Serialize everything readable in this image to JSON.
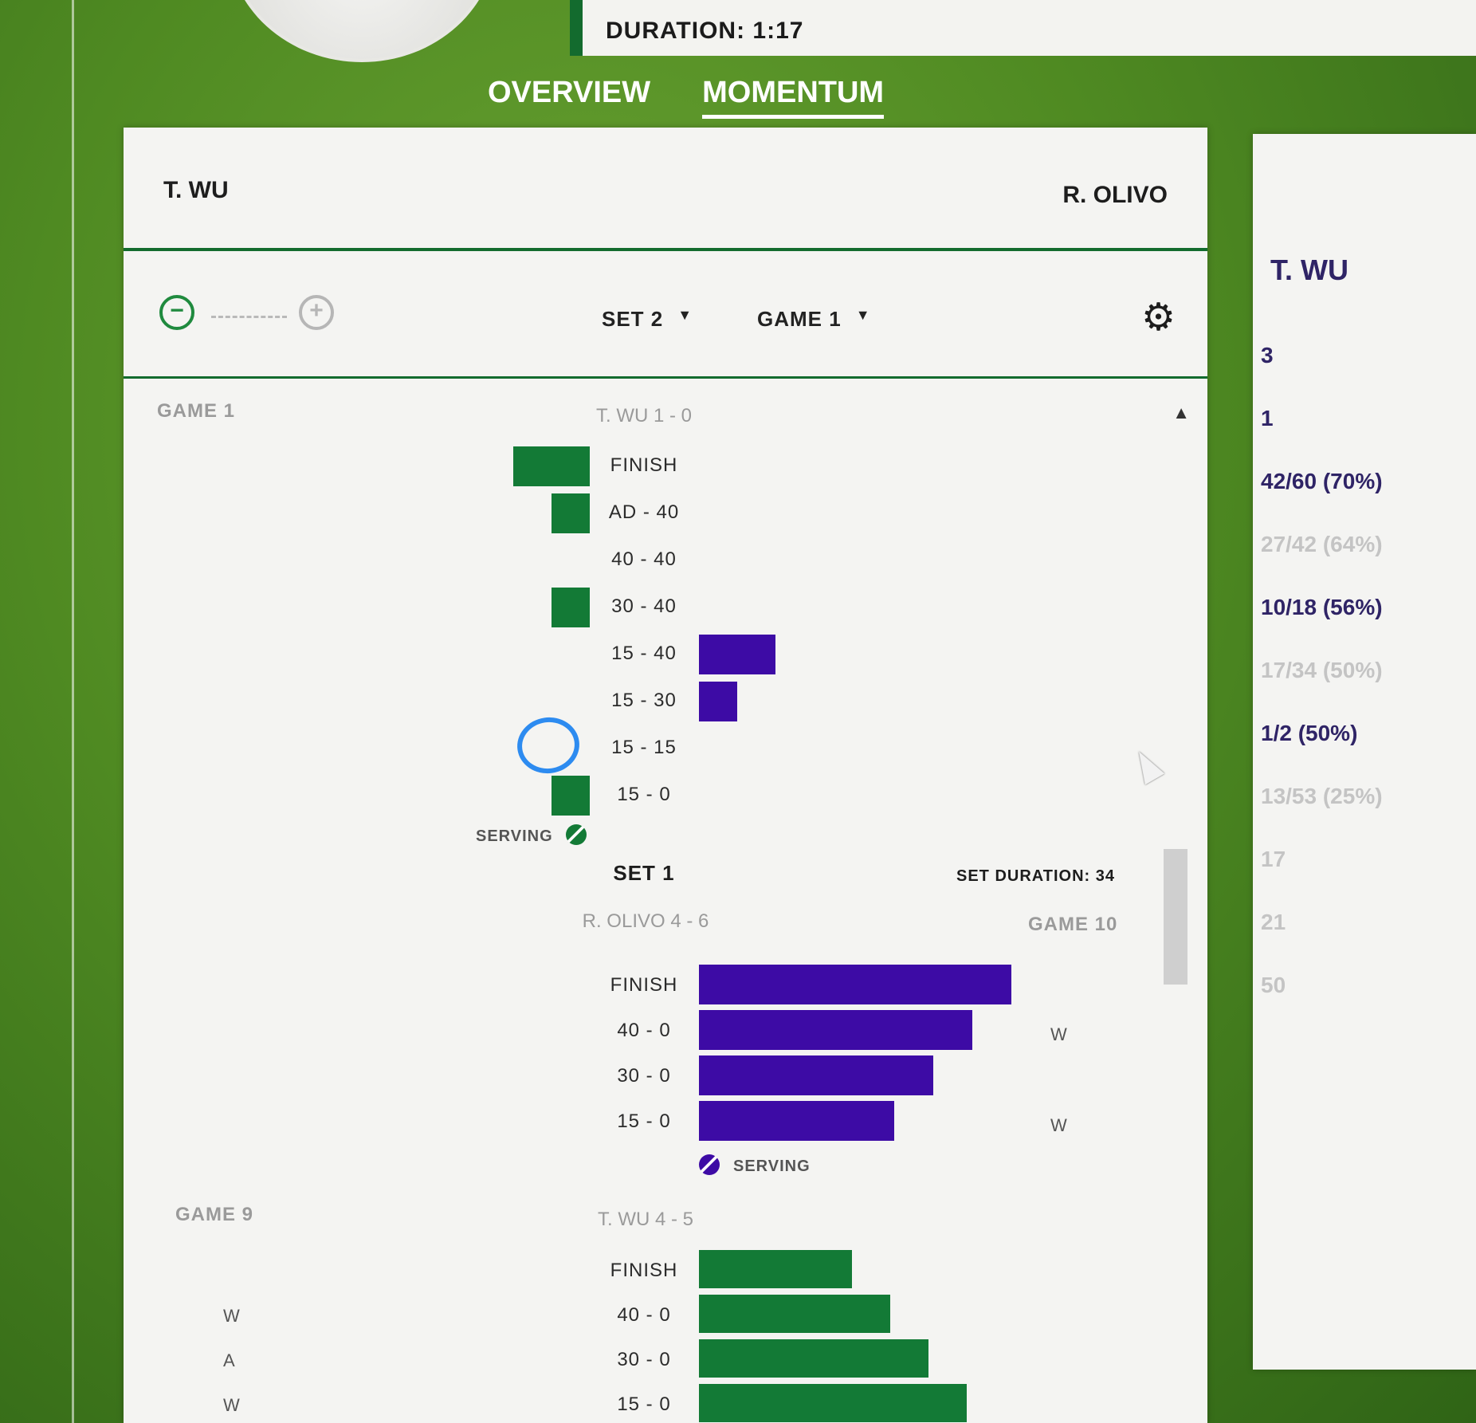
{
  "header": {
    "duration": "DURATION: 1:17"
  },
  "tabs": [
    {
      "label": "OVERVIEW",
      "active": false
    },
    {
      "label": "MOMENTUM",
      "active": true
    }
  ],
  "panel": {
    "player_left": "T. WU",
    "player_right": "R. OLIVO",
    "toolbar": {
      "zoom_out": "−",
      "zoom_in": "+",
      "set_select": "SET 2",
      "game_select": "GAME 1",
      "caret": "▼"
    },
    "scroll_up": "▲"
  },
  "colors": {
    "wu_green": "#137a36",
    "olivo_purple": "#3d0ba5",
    "accent_green": "#136b2e",
    "annotation_blue": "#2d8bf0"
  },
  "chart_data": {
    "type": "bar",
    "description_axis": "points by score progression; bars extend left for T. WU, right for R. OLIVO",
    "games": [
      {
        "game": "GAME 1",
        "score": "T. WU 1 - 0",
        "serving_player": "T. WU",
        "serving_label": "SERVING",
        "rows": [
          {
            "label": "FINISH",
            "player": "T. WU",
            "value": 2
          },
          {
            "label": "AD - 40",
            "player": "T. WU",
            "value": 1
          },
          {
            "label": "40 - 40",
            "player": "",
            "value": 0
          },
          {
            "label": "30 - 40",
            "player": "T. WU",
            "value": 1
          },
          {
            "label": "15 - 40",
            "player": "R. OLIVO",
            "value": 2
          },
          {
            "label": "15 - 30",
            "player": "R. OLIVO",
            "value": 1
          },
          {
            "label": "15 - 15",
            "player": "",
            "value": 0
          },
          {
            "label": "15 - 0",
            "player": "T. WU",
            "value": 1
          }
        ]
      },
      {
        "set": "SET 1",
        "set_duration": "SET DURATION: 34",
        "game": "GAME 10",
        "score": "R. OLIVO 4 - 6",
        "serving_player": "R. OLIVO",
        "serving_label": "SERVING",
        "rows": [
          {
            "label": "FINISH",
            "player": "R. OLIVO",
            "value": 8,
            "mark": ""
          },
          {
            "label": "40 - 0",
            "player": "R. OLIVO",
            "value": 7,
            "mark": "W"
          },
          {
            "label": "30 - 0",
            "player": "R. OLIVO",
            "value": 6,
            "mark": ""
          },
          {
            "label": "15 - 0",
            "player": "R. OLIVO",
            "value": 5,
            "mark": "W"
          }
        ]
      },
      {
        "game": "GAME 9",
        "score": "T. WU 4 - 5",
        "rows": [
          {
            "label": "FINISH",
            "player": "T. WU",
            "value": 4,
            "mark": ""
          },
          {
            "label": "40 - 0",
            "player": "T. WU",
            "value": 5,
            "mark": "W"
          },
          {
            "label": "30 - 0",
            "player": "T. WU",
            "value": 6,
            "mark": "A"
          },
          {
            "label": "15 - 0",
            "player": "T. WU",
            "value": 7,
            "mark": "W"
          }
        ]
      }
    ]
  },
  "side_panel": {
    "title": "T. WU",
    "stats": [
      {
        "text": "3",
        "strong": true
      },
      {
        "text": "1",
        "strong": true
      },
      {
        "text": "42/60 (70%)",
        "strong": true
      },
      {
        "text": "27/42 (64%)",
        "strong": false
      },
      {
        "text": "10/18 (56%)",
        "strong": true
      },
      {
        "text": "17/34 (50%)",
        "strong": false
      },
      {
        "text": "1/2 (50%)",
        "strong": true
      },
      {
        "text": "13/53 (25%)",
        "strong": false
      },
      {
        "text": "17",
        "strong": false
      },
      {
        "text": "21",
        "strong": false
      },
      {
        "text": "50",
        "strong": false
      }
    ]
  }
}
